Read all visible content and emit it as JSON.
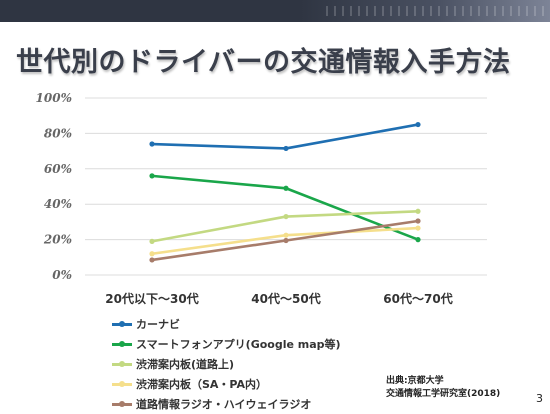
{
  "title": "世代別のドライバーの交通情報入手方法",
  "page_number": "3",
  "source": {
    "line1": "出典:京都大学",
    "line2": "交通情報工学研究室(2018)"
  },
  "chart_data": {
    "type": "line",
    "title": "",
    "xlabel": "",
    "ylabel": "",
    "categories": [
      "20代以下～30代",
      "40代～50代",
      "60代～70代"
    ],
    "ylim": [
      0,
      100
    ],
    "yticks": [
      "0%",
      "20%",
      "40%",
      "60%",
      "80%",
      "100%"
    ],
    "ytick_values": [
      0,
      20,
      40,
      60,
      80,
      100
    ],
    "grid": true,
    "legend_position": "bottom-left",
    "series": [
      {
        "name": "カーナビ",
        "values": [
          74,
          71.5,
          85
        ],
        "color": "#1f6fb2"
      },
      {
        "name": "スマートフォンアプリ(Google map等)",
        "values": [
          56,
          49,
          20
        ],
        "color": "#1aa64a"
      },
      {
        "name": "渋滞案内板(道路上)",
        "values": [
          19,
          33,
          36
        ],
        "color": "#c3d982"
      },
      {
        "name": "渋滞案内板（SA・PA内）",
        "values": [
          12,
          22.5,
          26.5
        ],
        "color": "#f5df8c"
      },
      {
        "name": "道路情報ラジオ・ハイウェイラジオ",
        "values": [
          8.5,
          19.5,
          30.5
        ],
        "color": "#a77c6a"
      }
    ]
  }
}
